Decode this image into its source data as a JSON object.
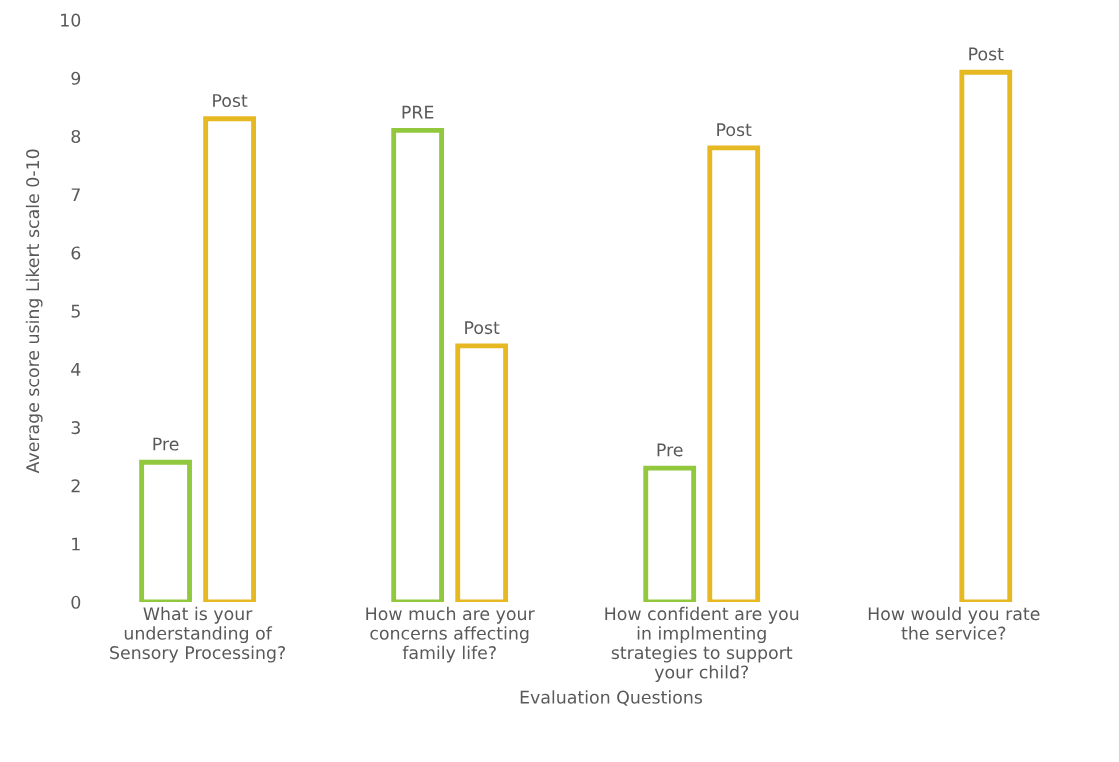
{
  "chart_data": {
    "type": "bar",
    "xlabel": "Evaluation Questions",
    "ylabel": "Average score using Likert scale 0-10",
    "categories": [
      "What is your understanding of Sensory Processing?",
      "How much are your concerns affecting family life?",
      "How confident are you in implmenting strategies to support your child?",
      "How would you rate the service?"
    ],
    "series": [
      {
        "color": "#92c83e",
        "values": [
          2.4,
          8.1,
          2.3,
          null
        ],
        "value_labels": [
          "Pre",
          "PRE",
          "Pre",
          null
        ]
      },
      {
        "color": "#e6b822",
        "values": [
          8.3,
          4.4,
          7.8,
          9.1
        ],
        "value_labels": [
          "Post",
          "Post",
          "Post",
          "Post"
        ]
      }
    ],
    "ylim": [
      0,
      10
    ],
    "yticks": [
      0,
      1,
      2,
      3,
      4,
      5,
      6,
      7,
      8,
      9,
      10
    ],
    "grid": false,
    "legend": false
  }
}
